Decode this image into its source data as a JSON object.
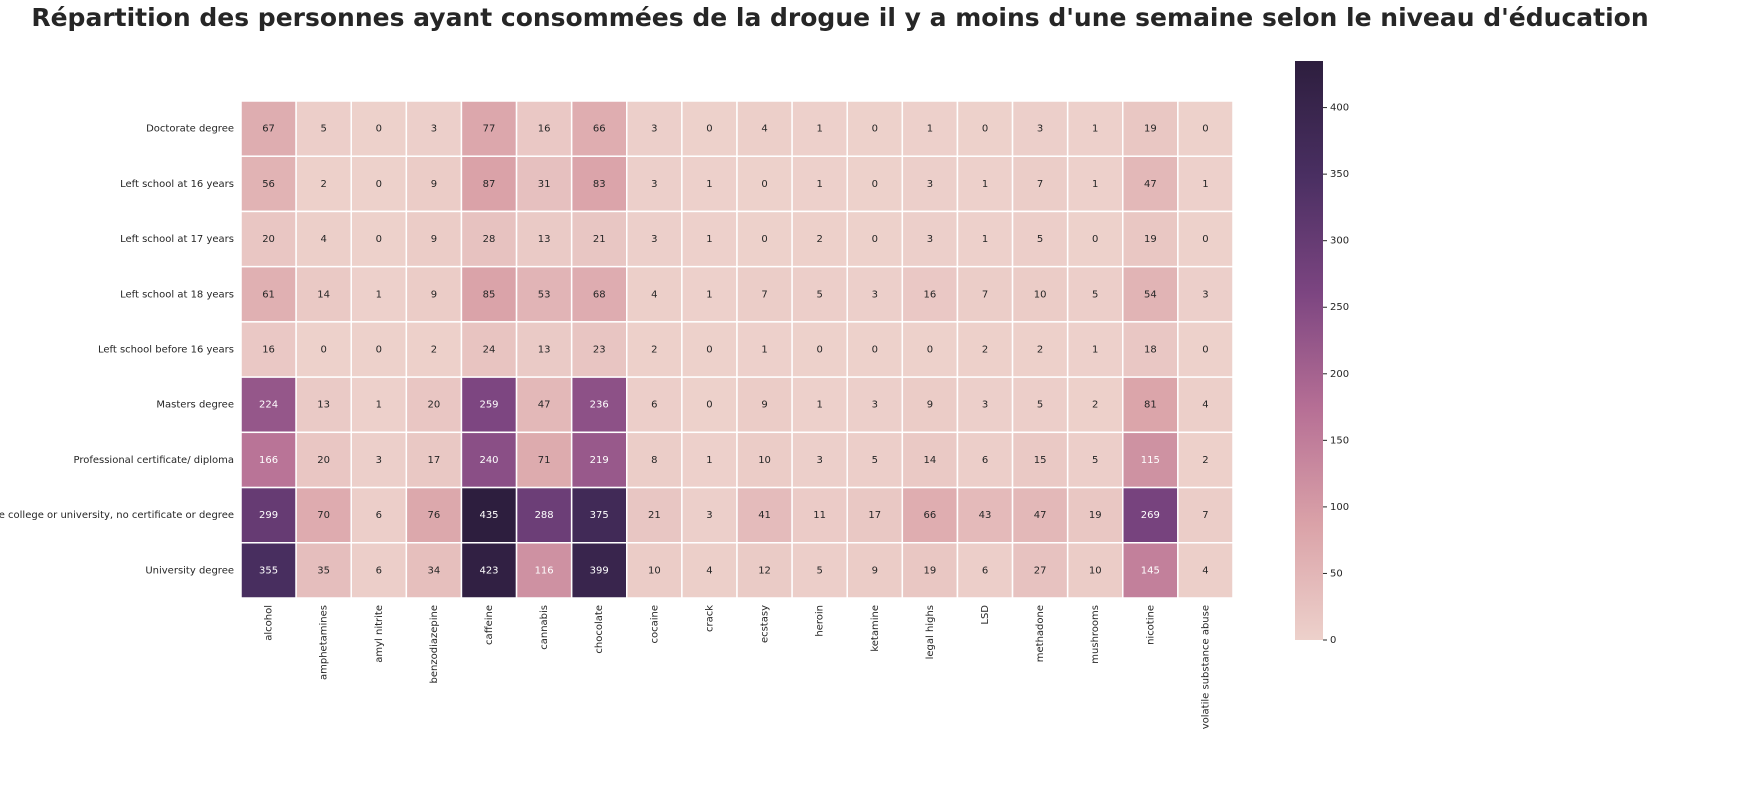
{
  "chart_data": {
    "type": "heatmap",
    "title": "Répartition des personnes ayant consommées de la drogue il y a moins d'une semaine selon le niveau d'éducation",
    "x": [
      "alcohol",
      "amphetamines",
      "amyl nitrite",
      "benzodiazepine",
      "caffeine",
      "cannabis",
      "chocolate",
      "cocaine",
      "crack",
      "ecstasy",
      "heroin",
      "ketamine",
      "legal highs",
      "LSD",
      "methadone",
      "mushrooms",
      "nicotine",
      "volatile substance abuse"
    ],
    "y": [
      "Doctorate degree",
      "Left school at 16 years",
      "Left school at 17 years",
      "Left school at 18 years",
      "Left school before 16 years",
      "Masters degree",
      "Professional certificate/ diploma",
      "Some college or university, no certificate or degree",
      "University degree"
    ],
    "values": [
      [
        67,
        5,
        0,
        3,
        77,
        16,
        66,
        3,
        0,
        4,
        1,
        0,
        1,
        0,
        3,
        1,
        19,
        0
      ],
      [
        56,
        2,
        0,
        9,
        87,
        31,
        83,
        3,
        1,
        0,
        1,
        0,
        3,
        1,
        7,
        1,
        47,
        1
      ],
      [
        20,
        4,
        0,
        9,
        28,
        13,
        21,
        3,
        1,
        0,
        2,
        0,
        3,
        1,
        5,
        0,
        19,
        0
      ],
      [
        61,
        14,
        1,
        9,
        85,
        53,
        68,
        4,
        1,
        7,
        5,
        3,
        16,
        7,
        10,
        5,
        54,
        3
      ],
      [
        16,
        0,
        0,
        2,
        24,
        13,
        23,
        2,
        0,
        1,
        0,
        0,
        0,
        2,
        2,
        1,
        18,
        0
      ],
      [
        224,
        13,
        1,
        20,
        259,
        47,
        236,
        6,
        0,
        9,
        1,
        3,
        9,
        3,
        5,
        2,
        81,
        4
      ],
      [
        166,
        20,
        3,
        17,
        240,
        71,
        219,
        8,
        1,
        10,
        3,
        5,
        14,
        6,
        15,
        5,
        115,
        2
      ],
      [
        299,
        70,
        6,
        76,
        435,
        288,
        375,
        21,
        3,
        41,
        11,
        17,
        66,
        43,
        47,
        19,
        269,
        7
      ],
      [
        355,
        35,
        6,
        34,
        423,
        116,
        399,
        10,
        4,
        12,
        5,
        9,
        19,
        6,
        27,
        10,
        145,
        4
      ]
    ],
    "clim": [
      0,
      435
    ],
    "cticks": [
      0,
      50,
      100,
      150,
      200,
      250,
      300,
      350,
      400
    ],
    "colormap": [
      "#edd1cb",
      "#daa2a8",
      "#b66f95",
      "#7c4581",
      "#4a2f62",
      "#2d1e3e"
    ]
  }
}
